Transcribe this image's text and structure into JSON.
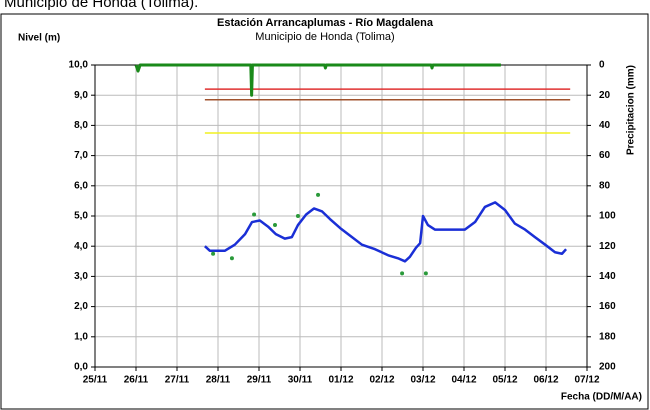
{
  "header_fragment": "Municipio de Honda (Tolima).",
  "chart_data": {
    "type": "line",
    "title": "Estación Arrancaplumas - Río Magdalena",
    "subtitle": "Municipio de Honda (Tolima)",
    "y_label": "Nivel (m)",
    "y2_label": "Precipitacion (mm)",
    "x_label": "Fecha (DD/M/AA)",
    "xlim": [
      0,
      12
    ],
    "xticks": [
      {
        "value": 0,
        "label": "25/11"
      },
      {
        "value": 1,
        "label": "26/11"
      },
      {
        "value": 2,
        "label": "27/11"
      },
      {
        "value": 3,
        "label": "28/11"
      },
      {
        "value": 4,
        "label": "29/11"
      },
      {
        "value": 5,
        "label": "30/11"
      },
      {
        "value": 6,
        "label": "01/12"
      },
      {
        "value": 7,
        "label": "02/12"
      },
      {
        "value": 8,
        "label": "03/12"
      },
      {
        "value": 9,
        "label": "04/12"
      },
      {
        "value": 10,
        "label": "05/12"
      },
      {
        "value": 11,
        "label": "06/12"
      },
      {
        "value": 12,
        "label": "07/12"
      }
    ],
    "ylim": [
      0,
      10
    ],
    "yticks": [
      {
        "value": 0,
        "label": "0,0"
      },
      {
        "value": 1,
        "label": "1,0"
      },
      {
        "value": 2,
        "label": "2,0"
      },
      {
        "value": 3,
        "label": "3,0"
      },
      {
        "value": 4,
        "label": "4,0"
      },
      {
        "value": 5,
        "label": "5,0"
      },
      {
        "value": 6,
        "label": "6,0"
      },
      {
        "value": 7,
        "label": "7,0"
      },
      {
        "value": 8,
        "label": "8,0"
      },
      {
        "value": 9,
        "label": "9,0"
      },
      {
        "value": 10,
        "label": "10,0"
      }
    ],
    "y2lim": [
      200,
      0
    ],
    "y2ticks": [
      0,
      20,
      40,
      60,
      80,
      100,
      120,
      140,
      160,
      180,
      200
    ],
    "grid": true,
    "series": [
      {
        "type": "line",
        "color": "#1a2fd6",
        "x": [
          2.68,
          2.8,
          3.17,
          3.41,
          3.66,
          3.83,
          4.02,
          4.22,
          4.41,
          4.63,
          4.8,
          4.95,
          5.15,
          5.34,
          5.54,
          5.73,
          5.98,
          6.22,
          6.51,
          6.83,
          7.15,
          7.39,
          7.56,
          7.68,
          7.83,
          7.93,
          8.0,
          8.12,
          8.29,
          8.66,
          9.02,
          9.27,
          9.51,
          9.76,
          10.0,
          10.24,
          10.49,
          10.73,
          10.98,
          11.22,
          11.39,
          11.49
        ],
        "values": [
          4.0,
          3.85,
          3.85,
          4.05,
          4.4,
          4.8,
          4.85,
          4.65,
          4.4,
          4.25,
          4.3,
          4.7,
          5.05,
          5.25,
          5.15,
          4.9,
          4.6,
          4.35,
          4.05,
          3.9,
          3.7,
          3.6,
          3.5,
          3.65,
          3.95,
          4.1,
          5.0,
          4.7,
          4.55,
          4.55,
          4.55,
          4.8,
          5.3,
          5.45,
          5.2,
          4.75,
          4.55,
          4.3,
          4.05,
          3.8,
          3.75,
          3.9
        ]
      },
      {
        "type": "scatter",
        "color": "#2a9a3a",
        "x": [
          2.88,
          3.34,
          3.88,
          4.39,
          4.95,
          5.44,
          7.49,
          8.07
        ],
        "values": [
          3.75,
          3.6,
          5.05,
          4.7,
          5.0,
          5.7,
          3.1,
          3.1
        ]
      },
      {
        "type": "line",
        "axis": "y2",
        "color": "#1a8a1a",
        "x": [
          1.0,
          1.05,
          1.1,
          3.8,
          3.82,
          3.84,
          5.6,
          5.62,
          5.64,
          8.2,
          8.22,
          8.24,
          9.9
        ],
        "values": [
          0,
          4,
          0,
          0,
          20,
          0,
          0,
          2,
          0,
          0,
          2,
          0,
          0
        ]
      }
    ],
    "reference_lines": [
      {
        "value": 9.2,
        "color": "#e03030",
        "xlim": [
          2.68,
          11.59
        ]
      },
      {
        "value": 8.85,
        "color": "#a0522d",
        "xlim": [
          2.68,
          11.59
        ]
      },
      {
        "value": 7.75,
        "color": "#f0f020",
        "xlim": [
          2.68,
          11.59
        ]
      }
    ]
  }
}
